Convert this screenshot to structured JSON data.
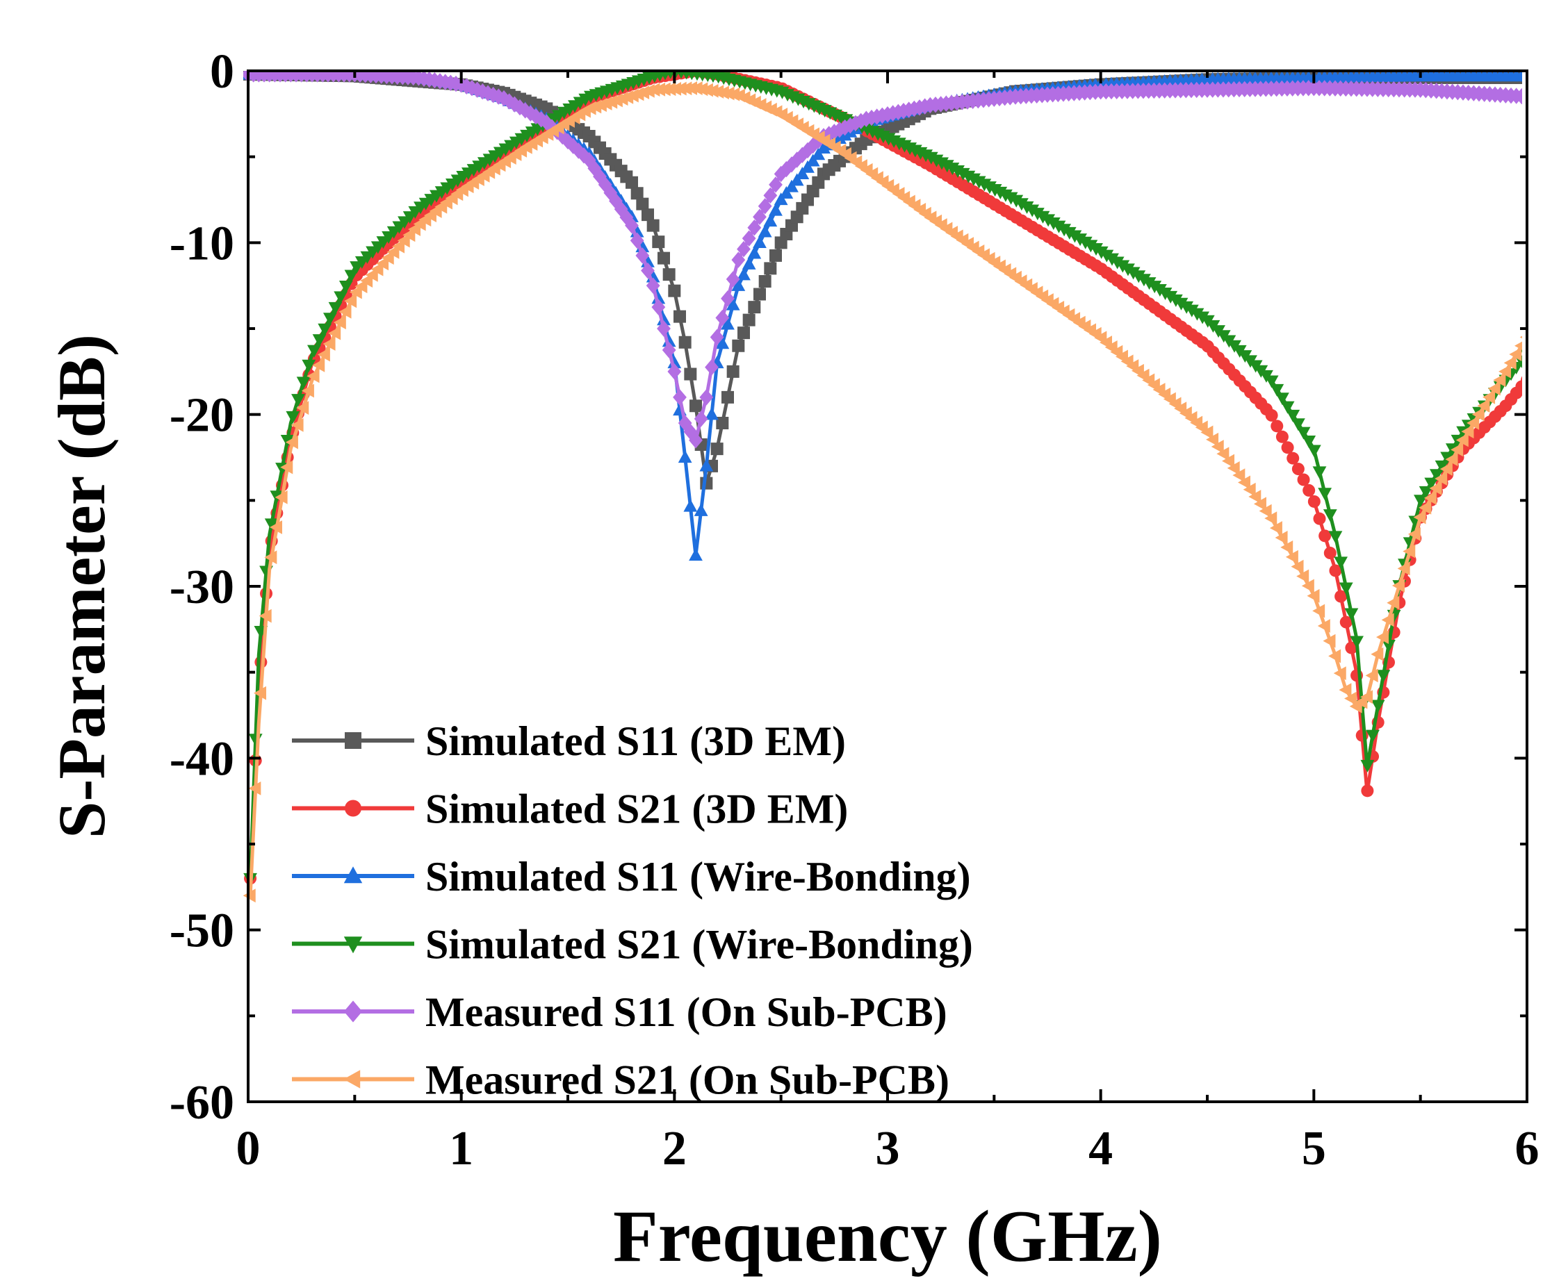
{
  "chart_data": {
    "type": "line",
    "title": "",
    "xlabel": "Frequency (GHz)",
    "ylabel": "S-Parameter (dB)",
    "xlim": [
      0,
      6
    ],
    "ylim": [
      -60,
      0
    ],
    "xticks": [
      "0",
      "1",
      "2",
      "3",
      "4",
      "5",
      "6"
    ],
    "yticks": [
      "0",
      "-10",
      "-20",
      "-30",
      "-40",
      "-50",
      "-60"
    ],
    "grid": false,
    "legend_position": "bottom-left",
    "series": [
      {
        "name": "Simulated S11 (3D EM)",
        "color": "#595959",
        "marker": "square",
        "x": [
          0,
          0.5,
          1.0,
          1.2,
          1.4,
          1.6,
          1.8,
          1.9,
          2.0,
          2.05,
          2.1,
          2.15,
          2.2,
          2.3,
          2.5,
          2.7,
          2.9,
          3.2,
          3.6,
          4.0,
          4.5,
          5.0,
          5.5,
          6.0
        ],
        "y": [
          -0.2,
          -0.3,
          -0.8,
          -1.3,
          -2.2,
          -3.8,
          -6.5,
          -9.0,
          -12.8,
          -15.8,
          -19.5,
          -24.0,
          -22.0,
          -16.0,
          -10.0,
          -6.0,
          -4.0,
          -2.2,
          -1.2,
          -0.8,
          -0.5,
          -0.4,
          -0.4,
          -0.4
        ]
      },
      {
        "name": "Simulated S21 (3D EM)",
        "color": "#f03a3a",
        "marker": "circle",
        "x": [
          0.01,
          0.05,
          0.1,
          0.2,
          0.3,
          0.5,
          0.8,
          1.0,
          1.3,
          1.6,
          1.9,
          2.1,
          2.2,
          2.5,
          2.8,
          3.2,
          3.6,
          4.0,
          4.5,
          4.8,
          5.0,
          5.1,
          5.2,
          5.25,
          5.3,
          5.4,
          5.5,
          5.7,
          5.9,
          6.0
        ],
        "y": [
          -47,
          -36,
          -28,
          -21.5,
          -17,
          -12,
          -8.3,
          -6.5,
          -4,
          -1.6,
          -0.4,
          0,
          -0.2,
          -1,
          -2.8,
          -5.5,
          -8.5,
          -11.5,
          -16,
          -20,
          -25,
          -29,
          -35,
          -42,
          -38,
          -31,
          -26,
          -22,
          -19.5,
          -18
        ]
      },
      {
        "name": "Simulated S11 (Wire-Bonding)",
        "color": "#1f6fde",
        "marker": "triangle-up",
        "x": [
          0,
          0.5,
          0.8,
          1.0,
          1.2,
          1.4,
          1.6,
          1.8,
          1.9,
          2.0,
          2.05,
          2.1,
          2.15,
          2.2,
          2.3,
          2.5,
          2.7,
          2.9,
          3.2,
          3.6,
          4.0,
          4.5,
          5.0,
          5.5,
          6.0
        ],
        "y": [
          -0.2,
          -0.2,
          -0.4,
          -0.8,
          -1.6,
          -2.8,
          -4.8,
          -8.5,
          -12.0,
          -17.0,
          -22.5,
          -28.2,
          -23.0,
          -17.0,
          -12.5,
          -7.5,
          -4.5,
          -3.0,
          -2.0,
          -1.2,
          -0.8,
          -0.5,
          -0.4,
          -0.3,
          -0.3
        ]
      },
      {
        "name": "Simulated S21 (Wire-Bonding)",
        "color": "#1e8f1e",
        "marker": "triangle-down",
        "x": [
          0.01,
          0.05,
          0.1,
          0.2,
          0.3,
          0.5,
          0.8,
          1.0,
          1.3,
          1.6,
          1.9,
          2.0,
          2.2,
          2.5,
          2.8,
          3.2,
          3.6,
          4.0,
          4.5,
          4.8,
          5.0,
          5.1,
          5.2,
          5.25,
          5.3,
          5.4,
          5.5,
          5.7,
          5.9,
          6.0
        ],
        "y": [
          -47,
          -34,
          -27,
          -20.5,
          -16.5,
          -11.5,
          -8,
          -6.2,
          -3.8,
          -1.5,
          -0.3,
          0,
          -0.3,
          -1.2,
          -2.8,
          -5,
          -7.5,
          -10.5,
          -14.5,
          -18,
          -22,
          -27,
          -33,
          -40.5,
          -37,
          -30,
          -25,
          -21,
          -18,
          -16.5
        ]
      },
      {
        "name": "Measured S11 (On Sub-PCB)",
        "color": "#b36ee3",
        "marker": "diamond",
        "x": [
          0,
          0.5,
          0.8,
          1.0,
          1.2,
          1.4,
          1.6,
          1.8,
          1.9,
          2.0,
          2.05,
          2.1,
          2.15,
          2.2,
          2.3,
          2.5,
          2.7,
          2.9,
          3.2,
          3.6,
          4.0,
          4.5,
          5.0,
          5.5,
          6.0
        ],
        "y": [
          -0.2,
          -0.2,
          -0.4,
          -0.8,
          -1.6,
          -3.0,
          -5.2,
          -9.0,
          -12.5,
          -17.5,
          -20.5,
          -21.5,
          -19.0,
          -15.5,
          -11.0,
          -6.0,
          -3.8,
          -2.8,
          -2.0,
          -1.5,
          -1.2,
          -1.1,
          -1.0,
          -1.1,
          -1.5
        ]
      },
      {
        "name": "Measured S21 (On Sub-PCB)",
        "color": "#fba866",
        "marker": "triangle-left",
        "x": [
          0.01,
          0.05,
          0.1,
          0.2,
          0.3,
          0.5,
          0.8,
          1.0,
          1.3,
          1.6,
          1.9,
          2.1,
          2.3,
          2.5,
          2.8,
          3.2,
          3.6,
          4.0,
          4.5,
          4.8,
          5.0,
          5.1,
          5.15,
          5.2,
          5.25,
          5.3,
          5.4,
          5.5,
          5.7,
          5.9,
          6.0
        ],
        "y": [
          -48,
          -38,
          -29,
          -22,
          -18,
          -13,
          -9,
          -7,
          -4.5,
          -2.2,
          -1.1,
          -1,
          -1.4,
          -2.5,
          -4.8,
          -8.5,
          -12,
          -15.5,
          -21,
          -26,
          -30.5,
          -34,
          -36,
          -37,
          -36.5,
          -34,
          -30,
          -26,
          -21.5,
          -17.5,
          -15.5
        ]
      }
    ]
  }
}
